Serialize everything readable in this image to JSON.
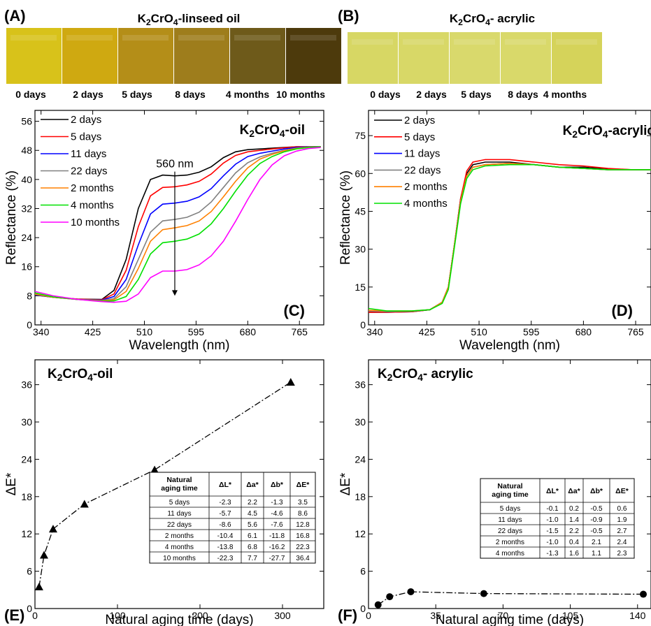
{
  "swatches": [
    {
      "panel_label": "(A)",
      "title_main": "K",
      "title_sub1": "2",
      "title_mid": "CrO",
      "title_sub2": "4",
      "title_rest": "-linseed oil",
      "labels": [
        "0 days",
        "2 days",
        "5 days",
        "8 days",
        "4 months",
        "10 months"
      ],
      "colors": [
        "#d8c21a",
        "#cfa911",
        "#b48e18",
        "#9e7d1c",
        "#6e5a1a",
        "#4d3a0c"
      ]
    },
    {
      "panel_label": "(B)",
      "title_main": "K",
      "title_sub1": "2",
      "title_mid": "CrO",
      "title_sub2": "4",
      "title_rest": "- acrylic",
      "labels": [
        "0 days",
        "2 days",
        "5 days",
        "8 days",
        "4 months"
      ],
      "colors": [
        "#d7d764",
        "#d8d867",
        "#d9d96c",
        "#d9d96a",
        "#d5d35a"
      ]
    }
  ],
  "chart_data": [
    {
      "panel": "(C)",
      "type": "line",
      "title_main": "K",
      "title_sub1": "2",
      "title_mid": "CrO",
      "title_sub2": "4",
      "title_rest": "-oil",
      "xlabel": "Wavelength (nm)",
      "ylabel": "Reflectance (%)",
      "xlim": [
        330,
        805
      ],
      "ylim": [
        0,
        59
      ],
      "xticks": [
        340,
        425,
        510,
        595,
        680,
        765
      ],
      "yticks": [
        0,
        8,
        16,
        24,
        32,
        40,
        48,
        56
      ],
      "annotation": "560 nm",
      "arrow": {
        "x": 560,
        "y_from": 46,
        "y_to": 8
      },
      "series": [
        {
          "name": "2 days",
          "color": "#000000",
          "x": [
            330,
            360,
            400,
            440,
            460,
            480,
            500,
            520,
            540,
            560,
            580,
            600,
            620,
            640,
            660,
            680,
            700,
            720,
            740,
            760,
            780,
            800
          ],
          "y": [
            8.2,
            7.6,
            7.1,
            7.0,
            9.5,
            18,
            32,
            40,
            41.2,
            41,
            41.2,
            42,
            43.5,
            46,
            47.6,
            48.2,
            48.4,
            48.6,
            48.8,
            49,
            49,
            49
          ]
        },
        {
          "name": "5 days",
          "color": "#ff0000",
          "x": [
            330,
            360,
            400,
            440,
            460,
            480,
            500,
            520,
            540,
            560,
            580,
            600,
            620,
            640,
            660,
            680,
            700,
            720,
            740,
            760,
            780,
            800
          ],
          "y": [
            8.3,
            7.6,
            7.1,
            6.9,
            8.5,
            15,
            27,
            35.5,
            37.8,
            38,
            38.5,
            39.5,
            41.5,
            44.5,
            46.6,
            47.6,
            48,
            48.4,
            48.7,
            49,
            49,
            49
          ]
        },
        {
          "name": "11 days",
          "color": "#0000ff",
          "x": [
            330,
            360,
            400,
            440,
            460,
            480,
            500,
            520,
            540,
            560,
            580,
            600,
            620,
            640,
            660,
            680,
            700,
            720,
            740,
            760,
            780,
            800
          ],
          "y": [
            8.3,
            7.6,
            7.0,
            6.8,
            7.8,
            12.5,
            22,
            30.5,
            33.2,
            33.5,
            34,
            35.2,
            37.5,
            41,
            44.2,
            46.3,
            47.2,
            47.8,
            48.4,
            48.8,
            49,
            49
          ]
        },
        {
          "name": "22 days",
          "color": "#808080",
          "x": [
            330,
            360,
            400,
            440,
            460,
            480,
            500,
            520,
            540,
            560,
            580,
            600,
            620,
            640,
            660,
            680,
            700,
            720,
            740,
            760,
            780,
            800
          ],
          "y": [
            8.4,
            7.6,
            7.0,
            6.7,
            7.2,
            10.5,
            18,
            25.5,
            28.6,
            29,
            29.6,
            31,
            33.8,
            37.8,
            41.8,
            44.6,
            46.2,
            47.2,
            48,
            48.6,
            48.9,
            49
          ]
        },
        {
          "name": "2 months",
          "color": "#ff8000",
          "x": [
            330,
            360,
            400,
            440,
            460,
            480,
            500,
            520,
            540,
            560,
            580,
            600,
            620,
            640,
            660,
            680,
            700,
            720,
            740,
            760,
            780,
            800
          ],
          "y": [
            8.5,
            7.6,
            7.0,
            6.6,
            6.9,
            9.2,
            15.5,
            23,
            26.2,
            26.7,
            27.3,
            28.6,
            31.2,
            35.2,
            39.5,
            43.2,
            45.6,
            46.9,
            47.9,
            48.5,
            48.9,
            49
          ]
        },
        {
          "name": "4 months",
          "color": "#00e000",
          "x": [
            330,
            360,
            400,
            440,
            460,
            480,
            500,
            520,
            540,
            560,
            580,
            600,
            620,
            640,
            660,
            680,
            700,
            720,
            740,
            760,
            780,
            800
          ],
          "y": [
            8.8,
            7.7,
            7.0,
            6.5,
            6.6,
            7.8,
            12.5,
            19.5,
            22.6,
            23,
            23.6,
            25,
            27.8,
            32,
            36.8,
            41.2,
            44.4,
            46.3,
            47.6,
            48.4,
            48.8,
            49
          ]
        },
        {
          "name": "10 months",
          "color": "#ff00ff",
          "x": [
            330,
            360,
            400,
            440,
            460,
            480,
            500,
            520,
            540,
            560,
            580,
            600,
            620,
            640,
            660,
            680,
            700,
            720,
            740,
            760,
            780,
            800
          ],
          "y": [
            9.2,
            8.0,
            7.0,
            6.4,
            6.2,
            6.5,
            8.5,
            13,
            14.8,
            14.8,
            15.2,
            16.5,
            19,
            23,
            28.5,
            34.5,
            40,
            44,
            46.5,
            47.8,
            48.5,
            48.8
          ]
        }
      ]
    },
    {
      "panel": "(D)",
      "type": "line",
      "title_main": "K",
      "title_sub1": "2",
      "title_mid": "CrO",
      "title_sub2": "4",
      "title_rest": "-acrylic",
      "xlabel": "Wavelength (nm)",
      "ylabel": "Reflectance (%)",
      "xlim": [
        330,
        790
      ],
      "ylim": [
        0,
        85
      ],
      "xticks": [
        340,
        425,
        510,
        595,
        680,
        765
      ],
      "yticks": [
        0,
        15,
        30,
        45,
        60,
        75
      ],
      "series": [
        {
          "name": "2 days",
          "color": "#000000",
          "x": [
            330,
            360,
            400,
            430,
            450,
            460,
            470,
            480,
            490,
            500,
            520,
            560,
            600,
            640,
            680,
            720,
            760,
            790
          ],
          "y": [
            5,
            5,
            5.2,
            6,
            9,
            15,
            32,
            50,
            60,
            63.5,
            64.5,
            64.5,
            63.5,
            62.5,
            62.5,
            61.8,
            61.5,
            61.5
          ]
        },
        {
          "name": "5 days",
          "color": "#ff0000",
          "x": [
            330,
            360,
            400,
            430,
            450,
            460,
            470,
            480,
            490,
            500,
            520,
            560,
            600,
            640,
            680,
            720,
            760,
            790
          ],
          "y": [
            5,
            5,
            5.2,
            6,
            9,
            15,
            32,
            50,
            61,
            64.5,
            65.5,
            65.5,
            64.5,
            63.5,
            63,
            62,
            61.5,
            61.5
          ]
        },
        {
          "name": "11 days",
          "color": "#0000ff",
          "x": [
            330,
            360,
            400,
            430,
            450,
            460,
            470,
            480,
            490,
            500,
            520,
            560,
            600,
            640,
            680,
            720,
            760,
            790
          ],
          "y": [
            5.5,
            5.3,
            5.4,
            6,
            9,
            15,
            32,
            49,
            59,
            62.5,
            63.5,
            64,
            63.5,
            62.5,
            62,
            61.5,
            61.5,
            61.5
          ]
        },
        {
          "name": "22 days",
          "color": "#808080",
          "x": [
            330,
            360,
            400,
            430,
            450,
            460,
            470,
            480,
            490,
            500,
            520,
            560,
            600,
            640,
            680,
            720,
            760,
            790
          ],
          "y": [
            5.5,
            5.3,
            5.4,
            6,
            9,
            15,
            32,
            49,
            59,
            62.5,
            63.5,
            64,
            63.5,
            62.5,
            62,
            61.5,
            61.5,
            61.5
          ]
        },
        {
          "name": "2 months",
          "color": "#ff8000",
          "x": [
            330,
            360,
            400,
            430,
            450,
            460,
            470,
            480,
            490,
            500,
            520,
            560,
            600,
            640,
            680,
            720,
            760,
            790
          ],
          "y": [
            5.8,
            5.5,
            5.5,
            6,
            9,
            15,
            32,
            49,
            59,
            62.5,
            63.5,
            64,
            63.5,
            62.5,
            62,
            61.5,
            61.5,
            61.5
          ]
        },
        {
          "name": "4 months",
          "color": "#00e000",
          "x": [
            330,
            360,
            400,
            430,
            450,
            460,
            470,
            480,
            490,
            500,
            520,
            560,
            600,
            640,
            680,
            720,
            760,
            790
          ],
          "y": [
            6.5,
            5.5,
            5.5,
            6,
            8.5,
            14,
            31,
            48,
            58,
            61.5,
            63,
            63.5,
            63.5,
            62.5,
            62,
            61.5,
            61.5,
            61.5
          ]
        }
      ]
    },
    {
      "panel": "(E)",
      "type": "line",
      "title_main": "K",
      "title_sub1": "2",
      "title_mid": "CrO",
      "title_sub2": "4",
      "title_rest": "-oil",
      "xlabel": "Natural aging time (days)",
      "ylabel": "ΔE*",
      "xlim": [
        0,
        350
      ],
      "ylim": [
        0,
        40
      ],
      "xticks": [
        0,
        100,
        200,
        300
      ],
      "yticks": [
        0,
        6,
        12,
        18,
        24,
        30,
        36
      ],
      "marker": "triangle",
      "series": [
        {
          "x": [
            5,
            11,
            22,
            60,
            145,
            310
          ],
          "y": [
            3.5,
            8.6,
            12.8,
            16.8,
            22.3,
            36.4
          ]
        }
      ],
      "table": {
        "headers": [
          "Natural aging time",
          "ΔL*",
          "Δa*",
          "Δb*",
          "ΔE*"
        ],
        "rows": [
          [
            "5 days",
            "-2.3",
            "2.2",
            "-1.3",
            "3.5"
          ],
          [
            "11 days",
            "-5.7",
            "4.5",
            "-4.6",
            "8.6"
          ],
          [
            "22 days",
            "-8.6",
            "5.6",
            "-7.6",
            "12.8"
          ],
          [
            "2 months",
            "-10.4",
            "6.1",
            "-11.8",
            "16.8"
          ],
          [
            "4 months",
            "-13.8",
            "6.8",
            "-16.2",
            "22.3"
          ],
          [
            "10 months",
            "-22.3",
            "7.7",
            "-27.7",
            "36.4"
          ]
        ]
      }
    },
    {
      "panel": "(F)",
      "type": "line",
      "title_main": "K",
      "title_sub1": "2",
      "title_mid": "CrO",
      "title_sub2": "4",
      "title_rest": "- acrylic",
      "xlabel": "Natural aging time (days)",
      "ylabel": "ΔE*",
      "xlim": [
        0,
        147
      ],
      "ylim": [
        0,
        40
      ],
      "xticks": [
        0,
        35,
        70,
        105,
        140
      ],
      "yticks": [
        0,
        6,
        12,
        18,
        24,
        30,
        36
      ],
      "marker": "circle",
      "series": [
        {
          "x": [
            5,
            11,
            22,
            60,
            143
          ],
          "y": [
            0.6,
            1.9,
            2.7,
            2.4,
            2.3
          ]
        }
      ],
      "table": {
        "headers": [
          "Natural aging time",
          "ΔL*",
          "Δa*",
          "Δb*",
          "ΔE*"
        ],
        "rows": [
          [
            "5 days",
            "-0.1",
            "0.2",
            "-0.5",
            "0.6"
          ],
          [
            "11 days",
            "-1.0",
            "1.4",
            "-0.9",
            "1.9"
          ],
          [
            "22 days",
            "-1.5",
            "2.2",
            "-0.5",
            "2.7"
          ],
          [
            "2 months",
            "-1.0",
            "0.4",
            "2.1",
            "2.4"
          ],
          [
            "4 months",
            "-1.3",
            "1.6",
            "1.1",
            "2.3"
          ]
        ]
      }
    }
  ]
}
